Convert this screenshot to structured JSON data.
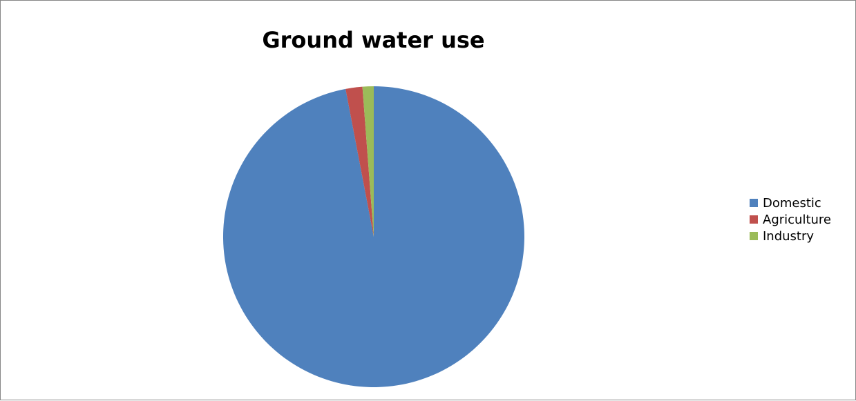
{
  "chart_data": {
    "type": "pie",
    "title": "Ground water use",
    "categories": [
      "Domestic",
      "Agriculture",
      "Industry"
    ],
    "values": [
      97.0,
      1.8,
      1.2
    ],
    "colors": [
      "#4F81BD",
      "#C0504D",
      "#9BBB59"
    ],
    "legend_position": "right",
    "start_angle_deg": 0,
    "direction": "counterclockwise-from-top-for-small-slices"
  }
}
